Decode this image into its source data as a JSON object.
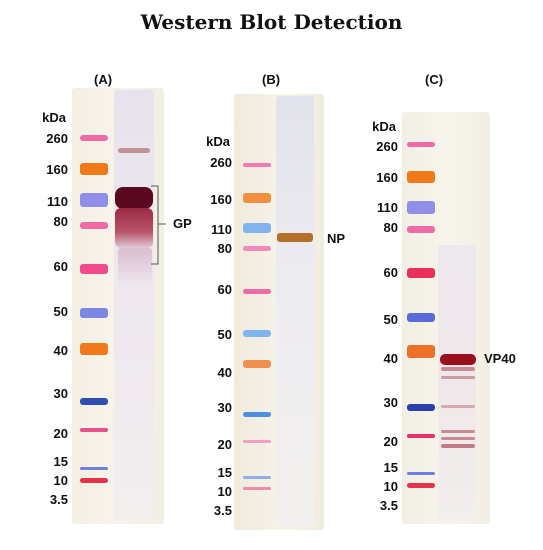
{
  "title": "Western Blot Detection",
  "panels": [
    {
      "letter": "(A)",
      "unit": "kDa",
      "marker_labels": [
        "260",
        "160",
        "110",
        "80",
        "60",
        "50",
        "40",
        "30",
        "20",
        "15",
        "10",
        "3.5"
      ],
      "band_label": "GP"
    },
    {
      "letter": "(B)",
      "unit": "kDa",
      "marker_labels": [
        "260",
        "160",
        "110",
        "80",
        "60",
        "50",
        "40",
        "30",
        "20",
        "15",
        "10",
        "3.5"
      ],
      "band_label": "NP"
    },
    {
      "letter": "(C)",
      "unit": "kDa",
      "marker_labels": [
        "260",
        "160",
        "110",
        "80",
        "60",
        "50",
        "40",
        "30",
        "20",
        "15",
        "10",
        "3.5"
      ],
      "band_label": "VP40"
    }
  ],
  "colors": {
    "pink": "#f0509a",
    "orange": "#f07a1a",
    "blue": "#6d7fe0",
    "darkblue": "#2c4fb0",
    "red": "#d8243a",
    "gp": "#7a0a2a",
    "np": "#b4702a",
    "vp40": "#9a0f1c"
  }
}
